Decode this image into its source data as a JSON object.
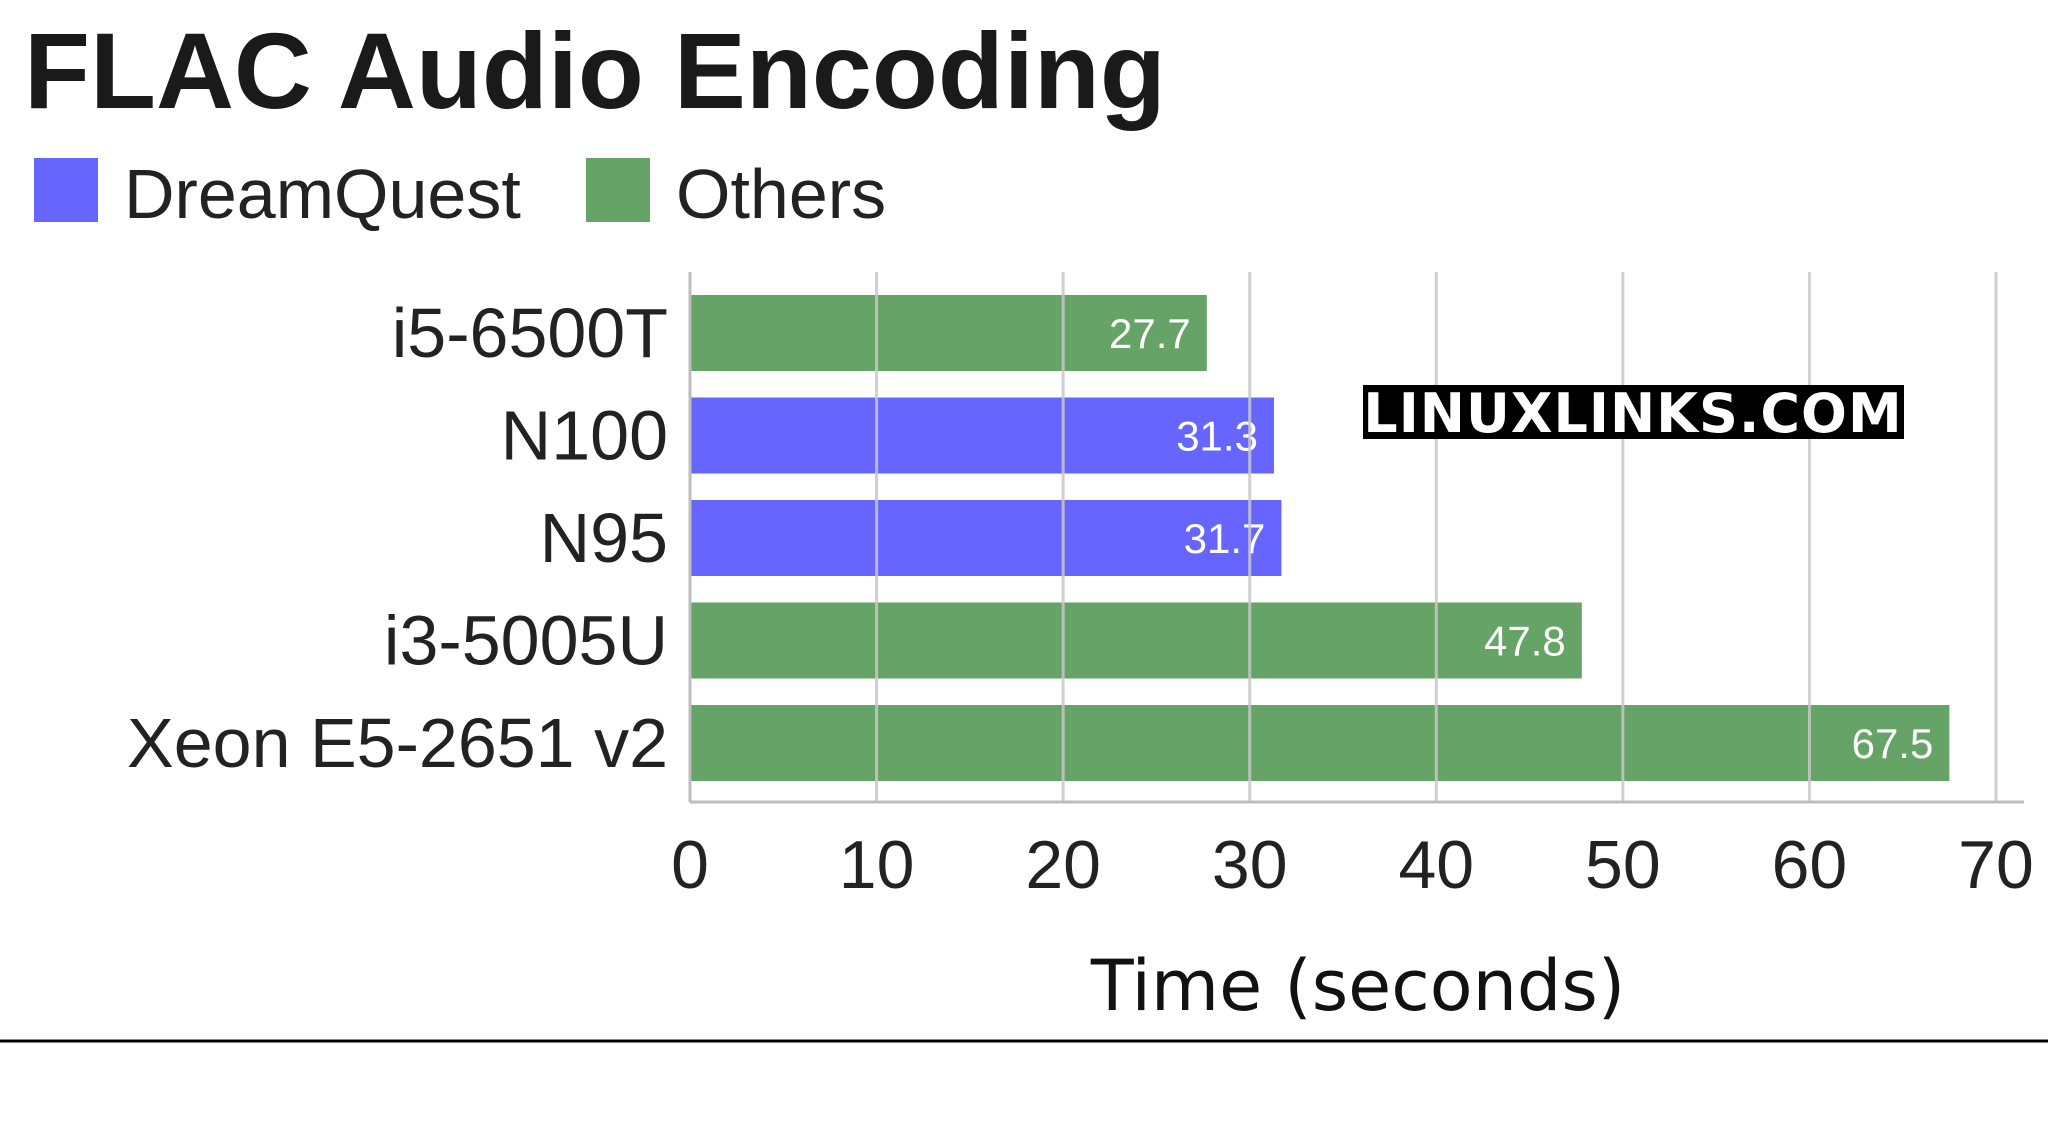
{
  "colors": {
    "dreamquest": "#6666ff",
    "others": "#66a366",
    "grid": "#c8c8c8",
    "watermark_bg": "#000000"
  },
  "watermark": "LINUXLINKS.COM",
  "chart_data": {
    "type": "bar",
    "orientation": "horizontal",
    "title": "FLAC Audio Encoding",
    "xlabel": "Time (seconds)",
    "ylabel": "",
    "xlim": [
      0,
      70
    ],
    "ticks": [
      0,
      10,
      20,
      30,
      40,
      50,
      60,
      70
    ],
    "grid": true,
    "legend": [
      {
        "name": "DreamQuest",
        "key": "dreamquest"
      },
      {
        "name": "Others",
        "key": "others"
      }
    ],
    "legend_position": "top-left",
    "categories": [
      "i5-6500T",
      "N100",
      "N95",
      "i3-5005U",
      "Xeon E5-2651 v2"
    ],
    "values": [
      27.7,
      31.3,
      31.7,
      47.8,
      67.5
    ],
    "groups": [
      "others",
      "dreamquest",
      "dreamquest",
      "others",
      "others"
    ]
  }
}
